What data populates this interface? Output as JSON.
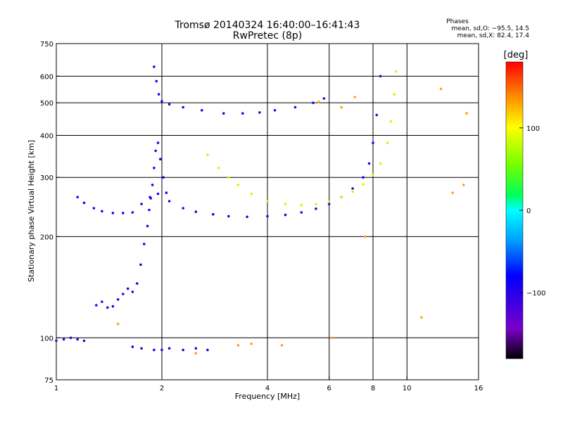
{
  "title_line1": "Tromsø 20140324 16:40:00–16:41:43",
  "title_line2": "RwPretec (8p)",
  "phases": {
    "heading": "Phases",
    "o_line": "mean, sd,O: −95.5, 14.5",
    "x_line": "mean, sd,X:  82.4, 17.4"
  },
  "colorbar": {
    "label": "[deg]",
    "range": [
      -180,
      180
    ],
    "ticks": [
      100,
      0,
      -100
    ]
  },
  "chart_data": {
    "type": "scatter",
    "title": "Tromsø 20140324 16:40:00–16:41:43",
    "xlabel": "Frequency [MHz]",
    "ylabel": "Stationary phase Virtual Height [km]",
    "xscale": "log2",
    "yscale": "log",
    "xlim": [
      1,
      16
    ],
    "ylim": [
      75,
      750
    ],
    "xticks": [
      1,
      2,
      4,
      6,
      8,
      10,
      16
    ],
    "xgrid": [
      2,
      4,
      6,
      8,
      10
    ],
    "yticks": [
      75,
      100,
      200,
      300,
      400,
      500,
      600,
      750
    ],
    "ygrid": [
      100,
      200,
      300,
      400,
      500,
      600
    ],
    "color_variable": "phase [deg]",
    "series": [
      {
        "name": "O-mode F2 trace",
        "phase": -100,
        "x": [
          1.15,
          1.2,
          1.28,
          1.35,
          1.45,
          1.55,
          1.65,
          1.75,
          1.85,
          1.95,
          2.1,
          2.3,
          2.5,
          2.8,
          3.1,
          3.5,
          4.0,
          4.5,
          5.0,
          5.5,
          6.0,
          6.5,
          7.0,
          7.5,
          7.8,
          8.0,
          8.2,
          8.4
        ],
        "y": [
          262,
          252,
          243,
          238,
          235,
          235,
          236,
          250,
          262,
          268,
          255,
          243,
          237,
          233,
          230,
          229,
          230,
          232,
          236,
          242,
          250,
          262,
          278,
          300,
          330,
          380,
          460,
          600
        ]
      },
      {
        "name": "O-mode F1 cusp",
        "phase": -100,
        "x": [
          1.84,
          1.86,
          1.88,
          1.9,
          1.92,
          1.95,
          1.98,
          2.02,
          2.06
        ],
        "y": [
          240,
          260,
          285,
          320,
          360,
          380,
          340,
          300,
          270
        ]
      },
      {
        "name": "O-mode E / Es rise",
        "phase": -100,
        "x": [
          1.3,
          1.35,
          1.4,
          1.45,
          1.5,
          1.55,
          1.6,
          1.65,
          1.7,
          1.74,
          1.78,
          1.82
        ],
        "y": [
          125,
          128,
          123,
          124,
          130,
          135,
          140,
          137,
          145,
          165,
          190,
          215
        ]
      },
      {
        "name": "O-mode second-hop trace",
        "phase": -100,
        "x": [
          1.9,
          1.93,
          1.96,
          2.0,
          2.1,
          2.3,
          2.6,
          3.0,
          3.4,
          3.8,
          4.2,
          4.8,
          5.4,
          5.8
        ],
        "y": [
          640,
          580,
          530,
          505,
          495,
          485,
          475,
          465,
          465,
          468,
          475,
          485,
          500,
          515
        ]
      },
      {
        "name": "O-mode sporadic E",
        "phase": -100,
        "x": [
          1.0,
          1.05,
          1.1,
          1.15,
          1.2,
          1.65,
          1.75,
          1.9,
          2.0,
          2.1,
          2.3,
          2.5,
          2.7
        ],
        "y": [
          98,
          99,
          100,
          99,
          98,
          94,
          93,
          92,
          92,
          93,
          92,
          93,
          92
        ]
      },
      {
        "name": "X-mode F2 trace",
        "phase": 82,
        "x": [
          2.7,
          2.9,
          3.1,
          3.3,
          3.6,
          4.0,
          4.5,
          5.0,
          5.5,
          6.0,
          6.5,
          7.0,
          7.5,
          8.0,
          8.4,
          8.8,
          9.0,
          9.2,
          9.3
        ],
        "y": [
          350,
          320,
          300,
          285,
          268,
          255,
          250,
          248,
          250,
          254,
          262,
          272,
          286,
          305,
          330,
          380,
          440,
          530,
          620
        ]
      },
      {
        "name": "X-mode sparse returns",
        "phase": 130,
        "x": [
          1.5,
          2.5,
          3.3,
          3.6,
          4.4,
          5.6,
          6.1,
          6.5,
          7.1,
          7.6,
          12.5,
          14.8,
          13.5,
          11.0,
          14.5
        ],
        "y": [
          110,
          90,
          95,
          96,
          95,
          503,
          100,
          485,
          520,
          200,
          550,
          465,
          270,
          115,
          285
        ]
      }
    ]
  }
}
